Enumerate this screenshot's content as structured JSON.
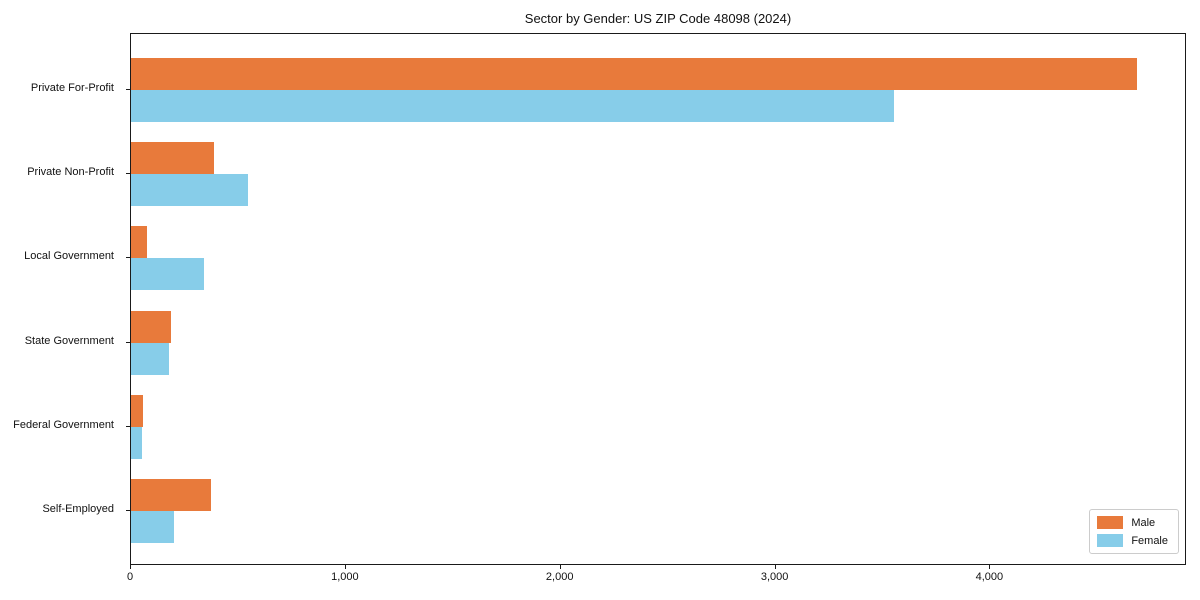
{
  "title": "Sector by Gender: US ZIP Code 48098 (2024)",
  "chart_data": {
    "type": "bar",
    "orientation": "horizontal",
    "title": "Sector by Gender: US ZIP Code 48098 (2024)",
    "categories": [
      "Private For-Profit",
      "Private Non-Profit",
      "Local Government",
      "State Government",
      "Federal Government",
      "Self-Employed"
    ],
    "series": [
      {
        "name": "Male",
        "color": "#e87a3b",
        "values": [
          4680,
          385,
          75,
          185,
          55,
          370
        ]
      },
      {
        "name": "Female",
        "color": "#87cde9",
        "values": [
          3550,
          545,
          340,
          175,
          50,
          200
        ]
      }
    ],
    "xlabel": "",
    "ylabel": "",
    "xlim": [
      0,
      4915
    ],
    "xticks": [
      0,
      1000,
      2000,
      3000,
      4000
    ],
    "xtick_labels": [
      "0",
      "1,000",
      "2,000",
      "3,000",
      "4,000"
    ],
    "grid": false,
    "legend": {
      "position": "lower right",
      "entries": [
        "Male",
        "Female"
      ]
    }
  }
}
